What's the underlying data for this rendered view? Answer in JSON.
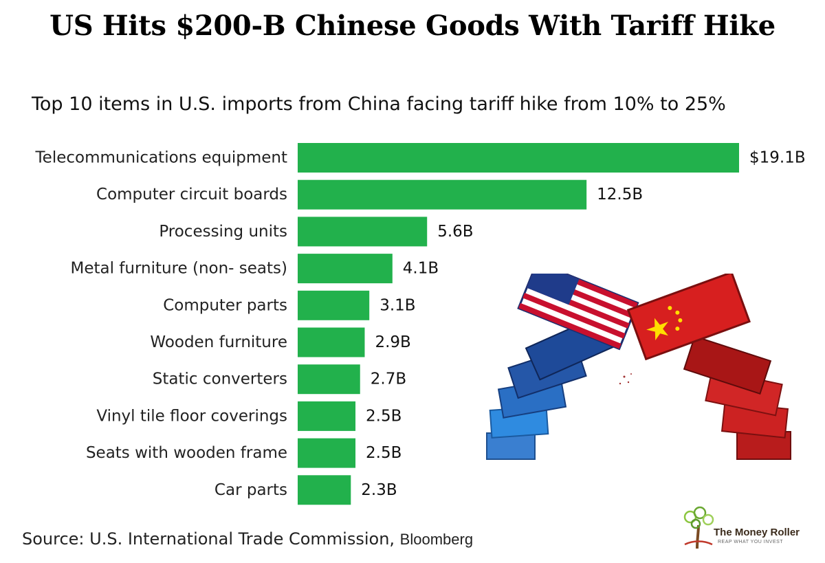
{
  "title": "US Hits $200-B Chinese Goods With Tariff Hike",
  "subtitle": "Top 10 items in U.S. imports from China facing tariff hike from 10% to 25%",
  "source": {
    "prefix": "Source: U.S. International Trade Commission, ",
    "suffix": "Bloomberg"
  },
  "logo": {
    "name": "The Money Roller",
    "tagline": "REAP WHAT YOU INVEST"
  },
  "colors": {
    "bar": "#22b14c",
    "us_container": "#2f63b8",
    "china_container": "#d42020"
  },
  "chart_data": {
    "type": "bar",
    "orientation": "horizontal",
    "title": "US Hits $200-B Chinese Goods With Tariff Hike",
    "subtitle": "Top 10 items in U.S. imports from China facing tariff hike from 10% to 25%",
    "xlabel": "",
    "ylabel": "",
    "grid": false,
    "legend": "none",
    "unit": "billion USD",
    "xlim": [
      0,
      19.1
    ],
    "categories": [
      "Telecommunications equipment",
      "Computer circuit boards",
      "Processing units",
      "Metal furniture (non- seats)",
      "Computer parts",
      "Wooden furniture",
      "Static converters",
      "Vinyl tile floor coverings",
      "Seats with wooden frame",
      "Car parts"
    ],
    "values": [
      19.1,
      12.5,
      5.6,
      4.1,
      3.1,
      2.9,
      2.7,
      2.5,
      2.5,
      2.3
    ],
    "value_labels": [
      "$19.1B",
      "12.5B",
      "5.6B",
      "4.1B",
      "3.1B",
      "2.9B",
      "2.7B",
      "2.5B",
      "2.5B",
      "2.3B"
    ]
  }
}
